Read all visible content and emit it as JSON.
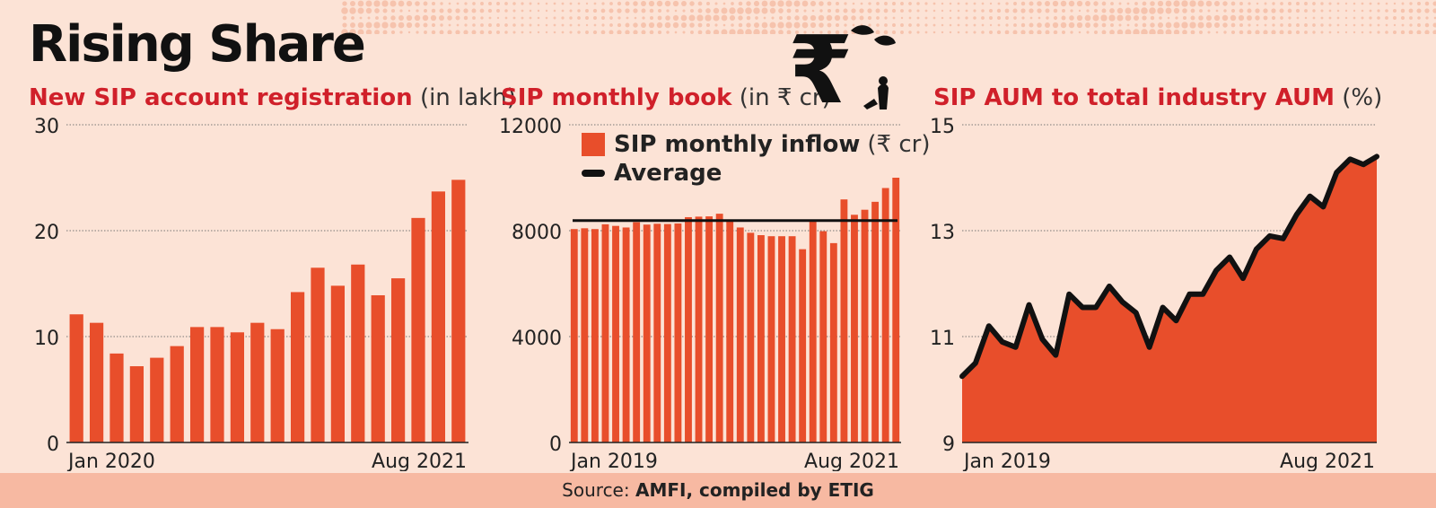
{
  "headline": "Rising Share",
  "source": {
    "prefix": "Source:",
    "text": "AMFI, compiled by ETIG"
  },
  "colors": {
    "bar": "#e84e2b",
    "area": "#e84e2b",
    "line": "#111111",
    "title_red": "#d0202a",
    "background": "#fce3d6"
  },
  "icon": "rupee-plant-icon",
  "chart_data": [
    {
      "type": "bar",
      "title": "New SIP account registration",
      "unit": "(in lakh)",
      "ylim": [
        0,
        30
      ],
      "yticks": [
        0,
        10,
        20,
        30
      ],
      "x_start_label": "Jan 2020",
      "x_end_label": "Aug 2021",
      "values": [
        12.1,
        11.3,
        8.4,
        7.2,
        8.0,
        9.1,
        10.9,
        10.9,
        10.4,
        11.3,
        10.7,
        14.2,
        16.5,
        14.8,
        16.8,
        13.9,
        15.5,
        21.2,
        23.7,
        24.8
      ],
      "grid": true
    },
    {
      "type": "bar",
      "title": "SIP monthly book",
      "unit": "(in ₹ cr)",
      "ylim": [
        0,
        12000
      ],
      "yticks": [
        0,
        4000,
        8000,
        12000
      ],
      "x_start_label": "Jan 2019",
      "x_end_label": "Aug 2021",
      "series_label": "SIP monthly inflow",
      "series_unit": "(₹ cr)",
      "average_label": "Average",
      "average": 8380,
      "values": [
        8060,
        8090,
        8060,
        8240,
        8180,
        8120,
        8320,
        8230,
        8260,
        8250,
        8270,
        8510,
        8530,
        8540,
        8640,
        8380,
        8120,
        7920,
        7830,
        7790,
        7790,
        7790,
        7300,
        8420,
        7980,
        7530,
        9180,
        8600,
        8790,
        9090,
        9610,
        10000
      ],
      "grid": true
    },
    {
      "type": "area",
      "title": "SIP AUM to total industry AUM",
      "unit": "(%)",
      "ylim": [
        9,
        15
      ],
      "yticks": [
        9,
        11,
        13,
        15
      ],
      "x_start_label": "Jan 2019",
      "x_end_label": "Aug 2021",
      "values": [
        10.25,
        10.5,
        11.2,
        10.9,
        10.8,
        11.6,
        10.95,
        10.65,
        11.8,
        11.55,
        11.55,
        11.95,
        11.65,
        11.45,
        10.8,
        11.55,
        11.3,
        11.8,
        11.8,
        12.25,
        12.5,
        12.1,
        12.65,
        12.9,
        12.85,
        13.3,
        13.65,
        13.45,
        14.1,
        14.35,
        14.25,
        14.4
      ],
      "grid": true
    }
  ]
}
